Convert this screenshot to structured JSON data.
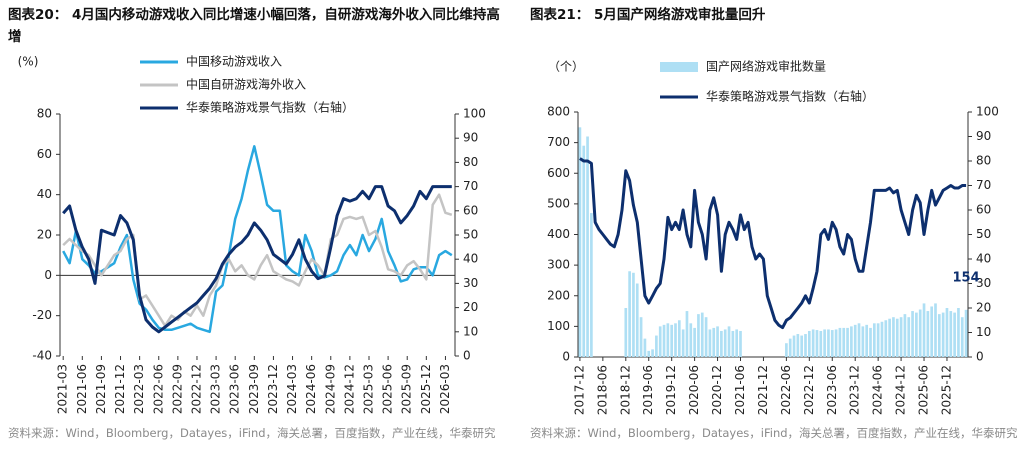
{
  "chart_data": [
    {
      "type": "line",
      "title": "图表20： 4月国内移动游戏收入同比增速小幅回落，自研游戏海外收入同比维持高增",
      "y_label": "(%)",
      "source": "资料来源：Wind，Bloomberg，Datayes，iFind，海关总署，百度指数，产业在线，华泰研究",
      "categories": [
        "2021-03",
        null,
        null,
        "2021-06",
        null,
        null,
        "2021-09",
        null,
        null,
        "2021-12",
        null,
        null,
        "2022-03",
        null,
        null,
        "2022-06",
        null,
        null,
        "2022-09",
        null,
        null,
        "2022-12",
        null,
        null,
        "2023-03",
        null,
        null,
        "2023-06",
        null,
        null,
        "2023-09",
        null,
        null,
        "2023-12",
        null,
        null,
        "2024-03",
        null,
        null,
        "2024-06",
        null,
        null,
        "2024-09",
        null,
        null,
        "2024-12",
        null,
        null,
        "2025-03",
        null,
        null,
        "2025-06",
        null,
        null,
        "2025-09",
        null,
        null,
        "2025-12",
        null,
        null,
        "2026-03",
        null
      ],
      "ylim": [
        -40,
        80
      ],
      "yticks": [
        -40,
        -20,
        0,
        20,
        40,
        60,
        80
      ],
      "y2lim": [
        0,
        100
      ],
      "y2ticks": [
        0,
        10,
        20,
        30,
        40,
        50,
        60,
        70,
        80,
        90,
        100
      ],
      "grid": false,
      "series": [
        {
          "name": "中国移动游戏收入",
          "color": "#29a8e0",
          "values": [
            12,
            6,
            22,
            8,
            5,
            1,
            2,
            4,
            6,
            14,
            20,
            -2,
            -14,
            -17,
            -22,
            -26,
            -27,
            -27,
            -26,
            -25,
            -24,
            -26,
            -27,
            -28,
            -8,
            -5,
            10,
            28,
            38,
            52,
            64,
            50,
            35,
            32,
            32,
            5,
            2,
            0,
            20,
            12,
            0,
            -1,
            0,
            2,
            10,
            15,
            10,
            20,
            12,
            18,
            28,
            12,
            5,
            -3,
            -2,
            3,
            4,
            4,
            0,
            10,
            12,
            10
          ]
        },
        {
          "name": "中国自研游戏海外收入",
          "color": "#c4c4c4",
          "values": [
            15,
            18,
            15,
            12,
            10,
            5,
            0,
            5,
            10,
            12,
            18,
            20,
            -12,
            -10,
            -15,
            -20,
            -25,
            -20,
            -22,
            -18,
            -20,
            -15,
            -20,
            -10,
            -5,
            5,
            8,
            2,
            5,
            0,
            -2,
            5,
            10,
            2,
            0,
            -2,
            -3,
            -5,
            2,
            8,
            5,
            0,
            18,
            20,
            28,
            29,
            28,
            29,
            20,
            22,
            14,
            3,
            2,
            0,
            5,
            7,
            3,
            -2,
            35,
            40,
            31,
            30
          ]
        },
        {
          "name": "华泰策略游戏景气指数（右轴）",
          "color": "#0d2f6e",
          "axis": "y2",
          "values": [
            59,
            62,
            52,
            45,
            40,
            30,
            52,
            51,
            50,
            58,
            55,
            48,
            25,
            15,
            12,
            10,
            12,
            14,
            16,
            18,
            20,
            22,
            25,
            28,
            32,
            38,
            42,
            45,
            47,
            50,
            55,
            52,
            48,
            42,
            40,
            38,
            42,
            48,
            40,
            35,
            32,
            33,
            45,
            58,
            65,
            64,
            65,
            68,
            65,
            70,
            70,
            62,
            60,
            55,
            58,
            62,
            68,
            65,
            70,
            70,
            70,
            70
          ]
        }
      ]
    },
    {
      "type": "bar",
      "title": "图表21： 5月国产网络游戏审批量回升",
      "y_label": "（个）",
      "source": "资料来源：Wind，Bloomberg，Datayes，iFind，海关总署，百度指数，产业在线，华泰研究",
      "categories": [
        "2017-12",
        null,
        null,
        null,
        null,
        null,
        "2018-06",
        null,
        null,
        null,
        null,
        null,
        "2018-12",
        null,
        null,
        null,
        null,
        null,
        "2019-06",
        null,
        null,
        null,
        null,
        null,
        "2019-12",
        null,
        null,
        null,
        null,
        null,
        "2020-06",
        null,
        null,
        null,
        null,
        null,
        "2020-12",
        null,
        null,
        null,
        null,
        null,
        "2021-06",
        null,
        null,
        null,
        null,
        null,
        "2021-12",
        null,
        null,
        null,
        null,
        null,
        "2022-06",
        null,
        null,
        null,
        null,
        null,
        "2022-12",
        null,
        null,
        null,
        null,
        null,
        "2023-06",
        null,
        null,
        null,
        null,
        null,
        "2023-12",
        null,
        null,
        null,
        null,
        null,
        "2024-06",
        null,
        null,
        null,
        null,
        null,
        "2024-12",
        null,
        null,
        null,
        null,
        null,
        "2025-06",
        null,
        null,
        null,
        null,
        null,
        "2025-12",
        null,
        null,
        null,
        null,
        null
      ],
      "ylim": [
        0,
        800
      ],
      "yticks": [
        0,
        100,
        200,
        300,
        400,
        500,
        600,
        700,
        800
      ],
      "y2lim": [
        0,
        100
      ],
      "y2ticks": [
        0,
        10,
        20,
        30,
        40,
        50,
        60,
        70,
        80,
        90,
        100
      ],
      "grid": false,
      "series": [
        {
          "name": "国产网络游戏审批数量",
          "color": "#aedff4",
          "type": "bar",
          "values": [
            750,
            690,
            720,
            470,
            0,
            0,
            0,
            0,
            0,
            0,
            0,
            0,
            160,
            280,
            275,
            240,
            130,
            60,
            20,
            25,
            70,
            100,
            105,
            110,
            105,
            110,
            120,
            90,
            150,
            110,
            95,
            140,
            145,
            130,
            90,
            95,
            100,
            85,
            90,
            100,
            85,
            90,
            85,
            0,
            0,
            0,
            0,
            0,
            0,
            0,
            0,
            0,
            0,
            0,
            45,
            60,
            70,
            75,
            70,
            75,
            85,
            90,
            88,
            85,
            90,
            90,
            88,
            90,
            95,
            95,
            95,
            100,
            105,
            110,
            100,
            105,
            95,
            110,
            110,
            115,
            120,
            125,
            130,
            125,
            130,
            140,
            130,
            150,
            145,
            155,
            175,
            150,
            165,
            175,
            140,
            145,
            160,
            150,
            145,
            160,
            130,
            154
          ]
        },
        {
          "name": "华泰策略游戏景气指数（右轴）",
          "color": "#0d2f6e",
          "type": "line",
          "axis": "y2",
          "values": [
            81,
            80,
            80,
            79,
            55,
            52,
            50,
            48,
            46,
            45,
            50,
            60,
            76,
            72,
            62,
            55,
            40,
            25,
            22,
            25,
            28,
            30,
            40,
            57,
            52,
            55,
            52,
            60,
            50,
            45,
            68,
            55,
            50,
            40,
            60,
            65,
            58,
            35,
            50,
            55,
            52,
            48,
            58,
            52,
            55,
            45,
            40,
            42,
            40,
            25,
            20,
            15,
            13,
            12,
            15,
            16,
            18,
            20,
            22,
            25,
            22,
            28,
            35,
            50,
            52,
            48,
            55,
            52,
            45,
            42,
            50,
            48,
            40,
            35,
            35,
            45,
            55,
            68,
            68,
            68,
            68,
            69,
            67,
            68,
            60,
            55,
            50,
            60,
            66,
            63,
            50,
            60,
            68,
            62,
            65,
            68,
            69,
            70,
            69,
            69,
            70,
            70
          ]
        }
      ]
    }
  ]
}
